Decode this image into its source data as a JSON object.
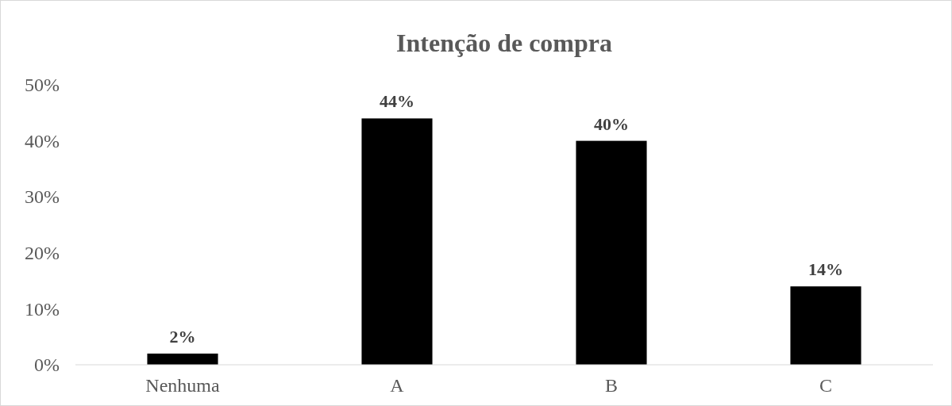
{
  "chart_data": {
    "type": "bar",
    "title": "Intenção de compra",
    "categories": [
      "Nenhuma",
      "A",
      "B",
      "C"
    ],
    "values": [
      2,
      44,
      40,
      14
    ],
    "color": "#000000",
    "value_labels": [
      "2%",
      "44%",
      "40%",
      "14%"
    ],
    "ylim": [
      0,
      50
    ],
    "yticks": [
      {
        "value": 0,
        "label": "0%"
      },
      {
        "value": 10,
        "label": "10%"
      },
      {
        "value": 20,
        "label": "20%"
      },
      {
        "value": 30,
        "label": "30%"
      },
      {
        "value": 40,
        "label": "40%"
      },
      {
        "value": 50,
        "label": "50%"
      }
    ],
    "grid": false
  }
}
